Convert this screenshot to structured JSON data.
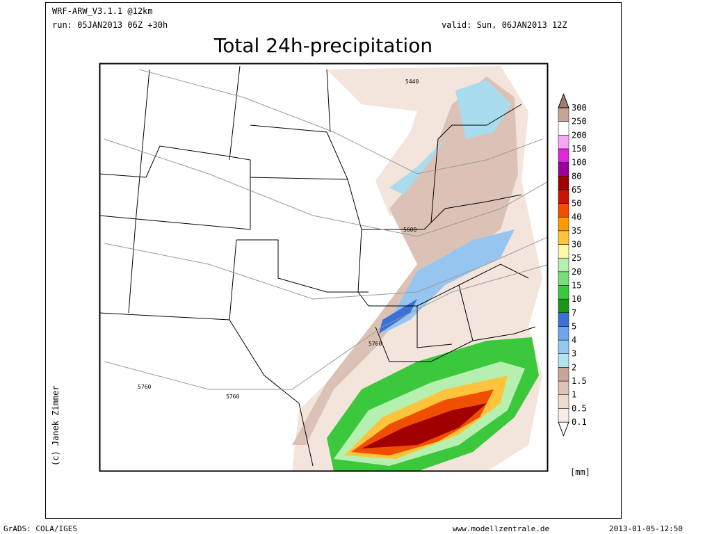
{
  "header": {
    "model": "WRF-ARW_V3.1.1 @12km",
    "run": "run: 05JAN2013 06Z +30h",
    "valid": "valid: Sun, 06JAN2013 12Z",
    "title": "Total 24h-precipitation"
  },
  "map": {
    "contour_labels": [
      "5440",
      "5600",
      "5760",
      "5760",
      "5760"
    ]
  },
  "legend": {
    "unit": "[mm]",
    "levels": [
      {
        "label": "0.1",
        "color": "#f7ece6"
      },
      {
        "label": "0.5",
        "color": "#ecdcd2"
      },
      {
        "label": "1",
        "color": "#ddc2b6"
      },
      {
        "label": "1.5",
        "color": "#c9a597"
      },
      {
        "label": "2",
        "color": "#b0e4ef"
      },
      {
        "label": "3",
        "color": "#96c6f0"
      },
      {
        "label": "4",
        "color": "#6ea6ec"
      },
      {
        "label": "5",
        "color": "#3a70d8"
      },
      {
        "label": "7",
        "color": "#1a961a"
      },
      {
        "label": "10",
        "color": "#3cc83c"
      },
      {
        "label": "15",
        "color": "#7adc7a"
      },
      {
        "label": "20",
        "color": "#b6f0b0"
      },
      {
        "label": "25",
        "color": "#fff7a8"
      },
      {
        "label": "30",
        "color": "#ffc43c"
      },
      {
        "label": "35",
        "color": "#ff9a00"
      },
      {
        "label": "40",
        "color": "#f04e00"
      },
      {
        "label": "50",
        "color": "#c81400"
      },
      {
        "label": "65",
        "color": "#a00000"
      },
      {
        "label": "80",
        "color": "#980098"
      },
      {
        "label": "100",
        "color": "#dc28dc"
      },
      {
        "label": "150",
        "color": "#f5a6f5"
      },
      {
        "label": "200",
        "color": "#ffffff"
      },
      {
        "label": "250",
        "color": "#c8a494"
      },
      {
        "label": "300",
        "color": "#a07e6e"
      }
    ]
  },
  "credit": "(c) Janek Zimmer",
  "footer": {
    "left": "GrADS: COLA/IGES",
    "center": "www.modellzentrale.de",
    "right": "2013-01-05-12:50"
  }
}
